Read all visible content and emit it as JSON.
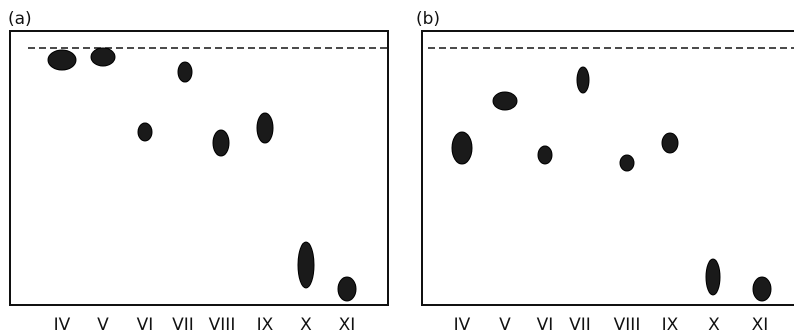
{
  "panels": [
    {
      "label": "(a)",
      "lanes": [
        "IV",
        "V",
        "VI",
        "VII",
        "VIII",
        "IX",
        "X",
        "XI"
      ]
    },
    {
      "label": "(b)",
      "lanes": [
        "IV",
        "V",
        "VI",
        "VII",
        "VIII",
        "IX",
        "X",
        "XI"
      ]
    }
  ]
}
